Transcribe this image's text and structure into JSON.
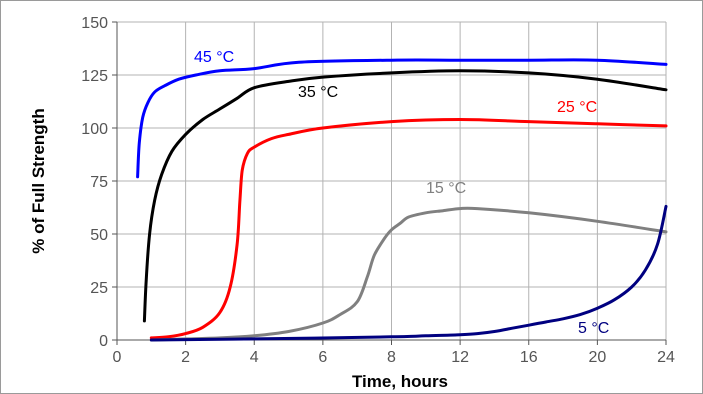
{
  "chart_data": {
    "type": "line",
    "title": "",
    "xlabel": "Time, hours",
    "ylabel": "% of Full Strength",
    "xlim": [
      0,
      24
    ],
    "ylim": [
      0,
      150
    ],
    "xticks": [
      "0",
      "2",
      "4",
      "6",
      "8",
      "12",
      "16",
      "20",
      "24"
    ],
    "yticks": [
      "0",
      "25",
      "50",
      "75",
      "100",
      "125",
      "150"
    ],
    "grid": true,
    "series": [
      {
        "name": "45 °C",
        "color": "#0000ff",
        "x": [
          0.6,
          0.65,
          0.75,
          0.9,
          1.1,
          1.4,
          1.8,
          2.3,
          3.0,
          4.0,
          5.3,
          8,
          12,
          16,
          20,
          24
        ],
        "y": [
          77,
          93,
          105,
          112,
          117,
          120,
          123,
          125,
          127,
          128,
          131,
          132,
          132,
          132,
          132,
          130
        ]
      },
      {
        "name": "35 °C",
        "color": "#000000",
        "x": [
          0.8,
          0.85,
          0.95,
          1.1,
          1.3,
          1.6,
          2.0,
          2.5,
          3.0,
          3.5,
          4.0,
          5.0,
          6,
          8,
          12,
          16,
          20,
          24
        ],
        "y": [
          9,
          28,
          50,
          66,
          78,
          89,
          97,
          104,
          109,
          114,
          119,
          122,
          124,
          126,
          127,
          126,
          123,
          118
        ]
      },
      {
        "name": "25 °C",
        "color": "#ff0000",
        "x": [
          1.0,
          1.5,
          2.0,
          2.5,
          3.0,
          3.3,
          3.5,
          3.58,
          3.65,
          3.8,
          4.0,
          4.5,
          5.0,
          6,
          8,
          12,
          16,
          20,
          24
        ],
        "y": [
          1,
          1.5,
          3,
          6,
          13,
          25,
          45,
          65,
          80,
          88,
          91,
          95,
          97,
          100,
          103,
          104,
          103,
          102,
          101
        ]
      },
      {
        "name": "15 °C",
        "color": "#808080",
        "x": [
          1,
          2,
          3,
          4,
          5,
          6,
          6.5,
          7.0,
          7.3,
          7.5,
          7.8,
          8.0,
          8.5,
          9,
          10,
          11,
          12,
          13,
          16,
          20,
          24
        ],
        "y": [
          0,
          0.5,
          1,
          2,
          4,
          8,
          12,
          18,
          30,
          40,
          48,
          52,
          55,
          58,
          60,
          61,
          62,
          62,
          60,
          56,
          51
        ]
      },
      {
        "name": "5 °C",
        "color": "#000080",
        "x": [
          1,
          4,
          8,
          10,
          12,
          13,
          14,
          15,
          16,
          17,
          18,
          19,
          20,
          21,
          22,
          22.8,
          23.5,
          24
        ],
        "y": [
          0,
          0.5,
          1.5,
          2,
          2.5,
          3,
          4,
          5.5,
          7,
          8.5,
          10,
          12,
          15,
          19,
          25,
          33,
          45,
          63
        ]
      }
    ]
  }
}
